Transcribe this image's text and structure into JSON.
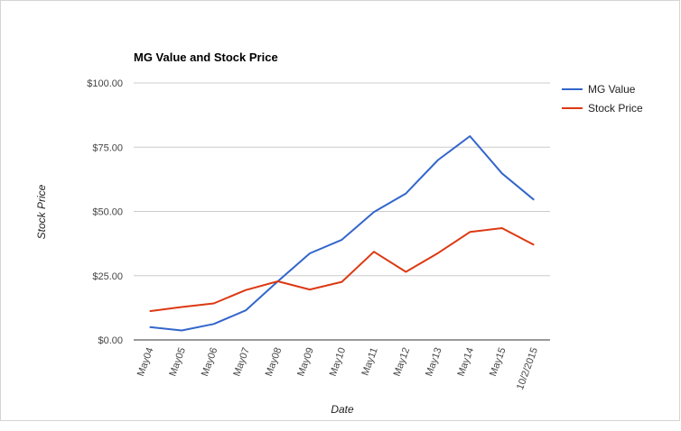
{
  "chart_data": {
    "type": "line",
    "title": "MG Value and Stock Price",
    "xlabel": "Date",
    "ylabel": "Stock Price",
    "categories": [
      "May04",
      "May05",
      "May06",
      "May07",
      "May08",
      "May09",
      "May10",
      "May11",
      "May12",
      "May13",
      "May14",
      "May15",
      "10/2/2015"
    ],
    "ylim": [
      0,
      100
    ],
    "yticks": [
      "$0.00",
      "$25.00",
      "$50.00",
      "$75.00",
      "$100.00"
    ],
    "ytick_values": [
      0,
      25,
      50,
      75,
      100
    ],
    "grid": true,
    "legend": "right",
    "series": [
      {
        "name": "MG Value",
        "color": "#3366cc",
        "values": [
          5,
          3.7,
          6.2,
          11.5,
          22.8,
          33.7,
          39,
          49.8,
          57,
          70,
          79.3,
          64.8,
          54.5
        ]
      },
      {
        "name": "Stock Price",
        "color": "#dc3912",
        "values": [
          11.2,
          12.8,
          14.2,
          19.4,
          22.8,
          19.6,
          22.6,
          34.3,
          26.5,
          33.8,
          42,
          43.5,
          37
        ]
      }
    ]
  }
}
